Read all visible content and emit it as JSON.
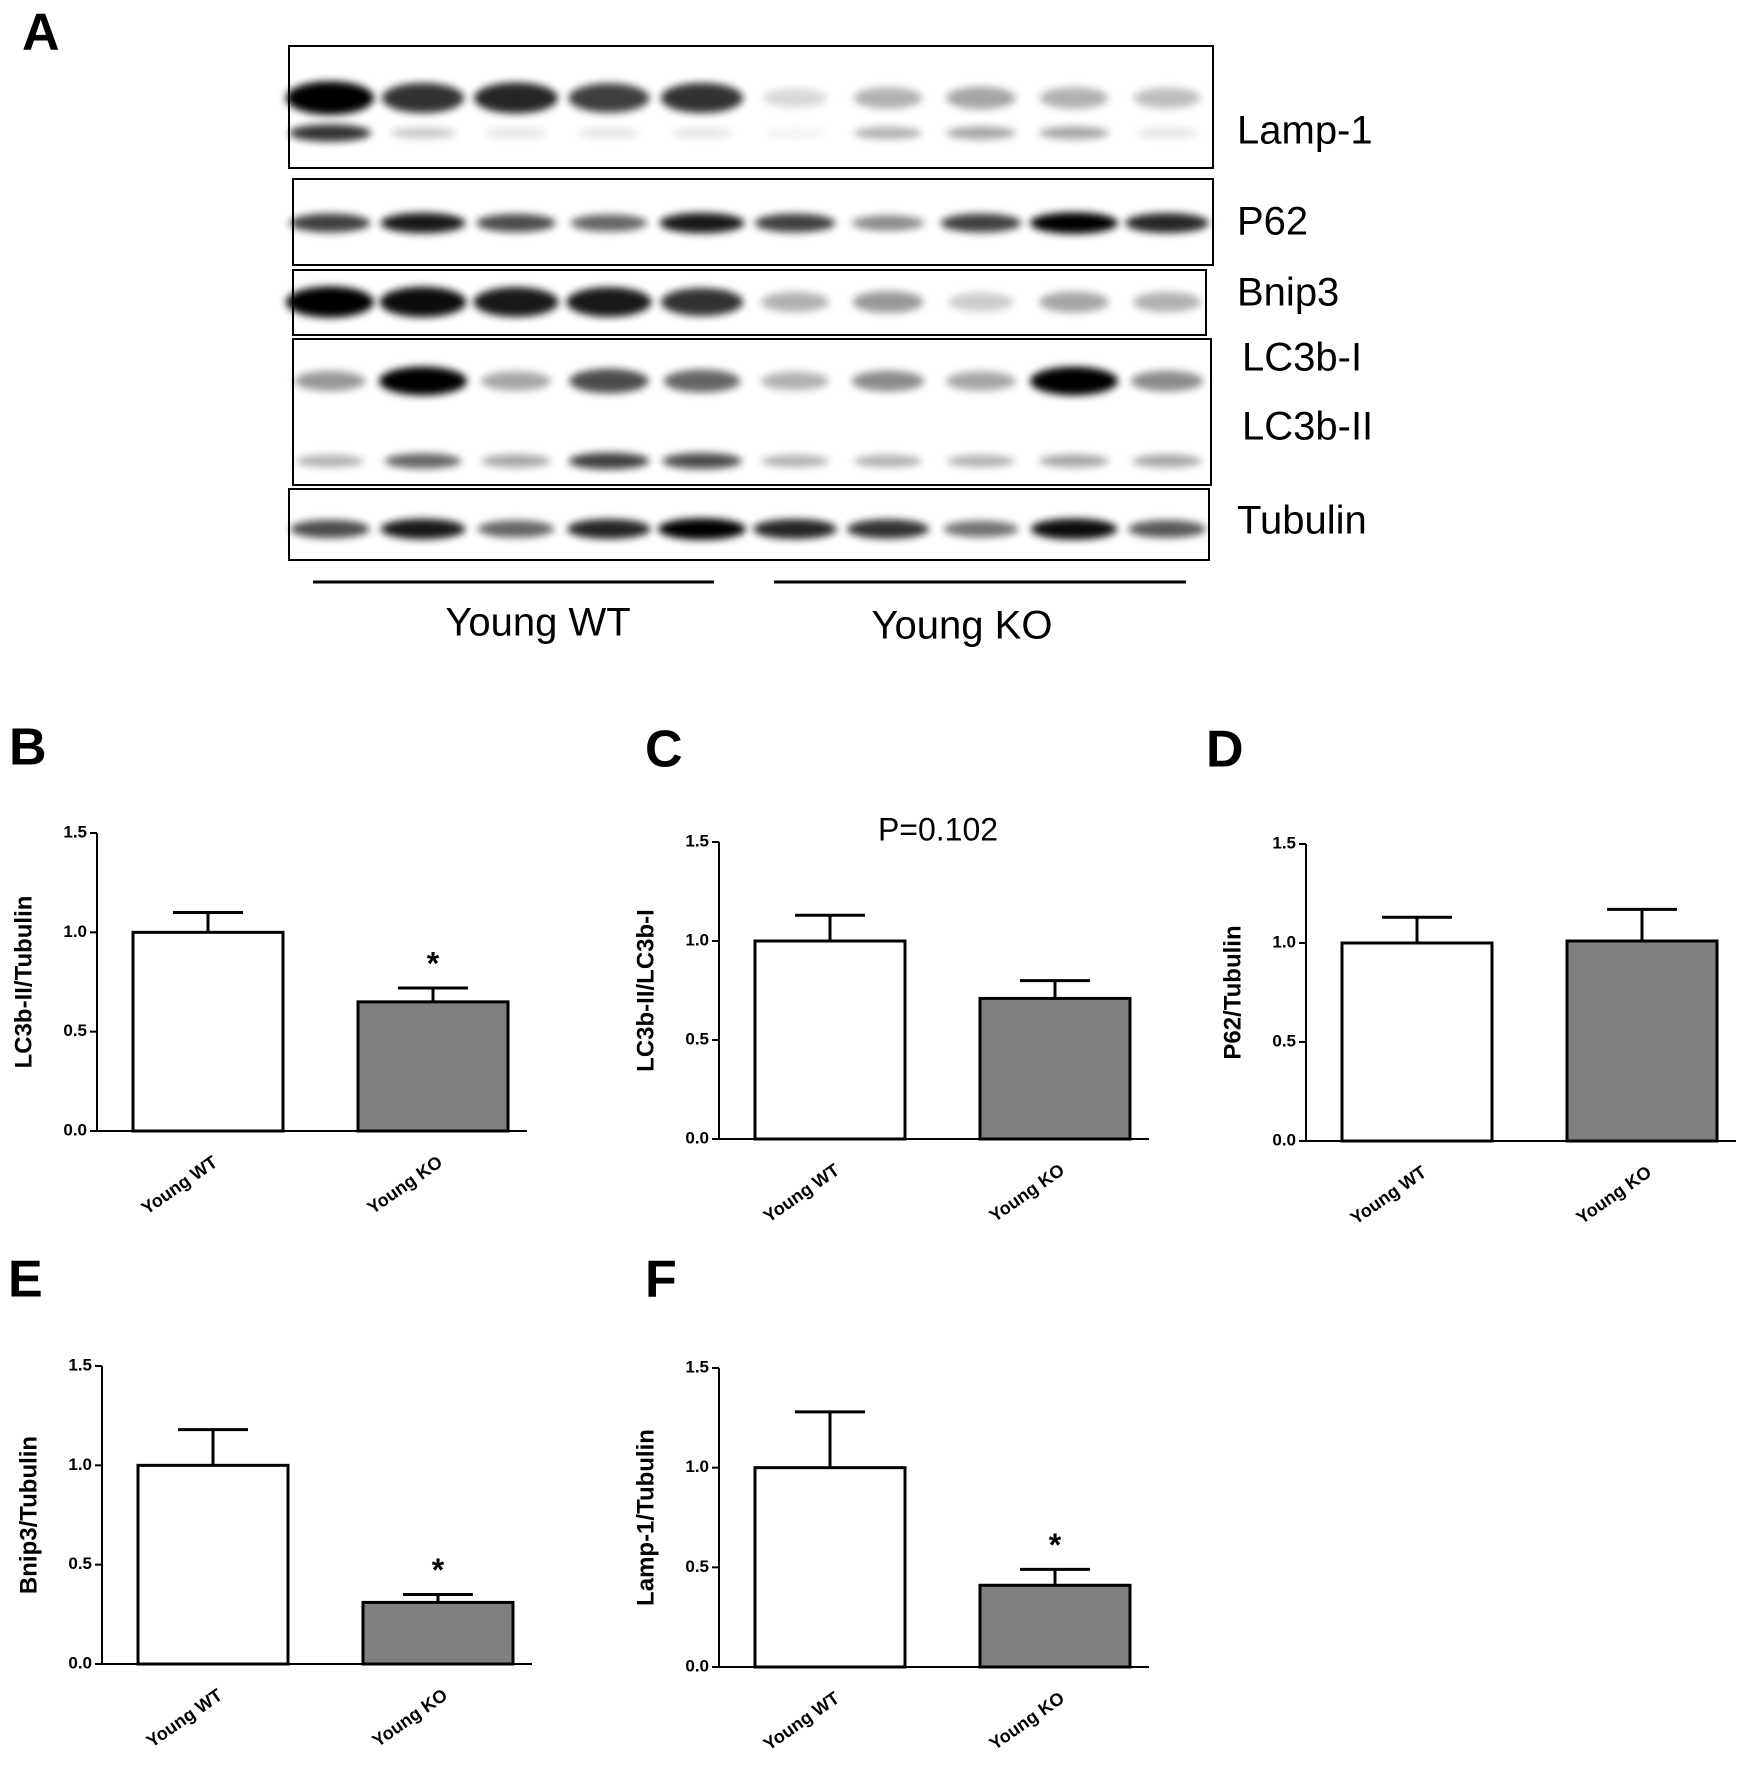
{
  "blot": {
    "panel": "A",
    "bands": [
      "Lamp-1",
      "P62",
      "Bnip3",
      "LC3b-I",
      "LC3b-II",
      "Tubulin"
    ],
    "groups": [
      "Young WT",
      "Young KO"
    ]
  },
  "chart_data": [
    {
      "type": "bar",
      "panel": "B",
      "ylabel": "LC3b-II/Tubulin",
      "categories": [
        "Young WT",
        "Young KO"
      ],
      "values": [
        1.0,
        0.65
      ],
      "errors": [
        0.1,
        0.07
      ],
      "colors": [
        "#ffffff",
        "#808080"
      ],
      "annotation": "*",
      "ylim": [
        0,
        1.5
      ],
      "yticks": [
        {
          "value": 0,
          "label": "0.0"
        },
        {
          "value": 0.5,
          "label": "0.5"
        },
        {
          "value": 1,
          "label": "1.0"
        },
        {
          "value": 1.5,
          "label": "1.5"
        }
      ]
    },
    {
      "type": "bar",
      "panel": "C",
      "ylabel": "LC3b-II/LC3b-I",
      "categories": [
        "Young WT",
        "Young KO"
      ],
      "values": [
        1.0,
        0.71
      ],
      "errors": [
        0.13,
        0.09
      ],
      "colors": [
        "#ffffff",
        "#808080"
      ],
      "note": "P=0.102",
      "ylim": [
        0,
        1.5
      ],
      "yticks": [
        {
          "value": 0,
          "label": "0.0"
        },
        {
          "value": 0.5,
          "label": "0.5"
        },
        {
          "value": 1,
          "label": "1.0"
        },
        {
          "value": 1.5,
          "label": "1.5"
        }
      ]
    },
    {
      "type": "bar",
      "panel": "D",
      "ylabel": "P62/Tubulin",
      "categories": [
        "Young WT",
        "Young KO"
      ],
      "values": [
        1.0,
        1.01
      ],
      "errors": [
        0.13,
        0.16
      ],
      "colors": [
        "#ffffff",
        "#808080"
      ],
      "ylim": [
        0,
        1.5
      ],
      "yticks": [
        {
          "value": 0,
          "label": "0.0"
        },
        {
          "value": 0.5,
          "label": "0.5"
        },
        {
          "value": 1,
          "label": "1.0"
        },
        {
          "value": 1.5,
          "label": "1.5"
        }
      ]
    },
    {
      "type": "bar",
      "panel": "E",
      "ylabel": "Bnip3/Tubulin",
      "categories": [
        "Young WT",
        "Young KO"
      ],
      "values": [
        1.0,
        0.31
      ],
      "errors": [
        0.18,
        0.04
      ],
      "colors": [
        "#ffffff",
        "#808080"
      ],
      "annotation": "*",
      "ylim": [
        0,
        1.5
      ],
      "yticks": [
        {
          "value": 0,
          "label": "0.0"
        },
        {
          "value": 0.5,
          "label": "0.5"
        },
        {
          "value": 1,
          "label": "1.0"
        },
        {
          "value": 1.5,
          "label": "1.5"
        }
      ]
    },
    {
      "type": "bar",
      "panel": "F",
      "ylabel": "Lamp-1/Tubulin",
      "categories": [
        "Young WT",
        "Young KO"
      ],
      "values": [
        1.0,
        0.41
      ],
      "errors": [
        0.28,
        0.08
      ],
      "colors": [
        "#ffffff",
        "#808080"
      ],
      "annotation": "*",
      "ylim": [
        0,
        1.5
      ],
      "yticks": [
        {
          "value": 0,
          "label": "0.0"
        },
        {
          "value": 0.5,
          "label": "0.5"
        },
        {
          "value": 1,
          "label": "1.0"
        },
        {
          "value": 1.5,
          "label": "1.5"
        }
      ]
    }
  ]
}
